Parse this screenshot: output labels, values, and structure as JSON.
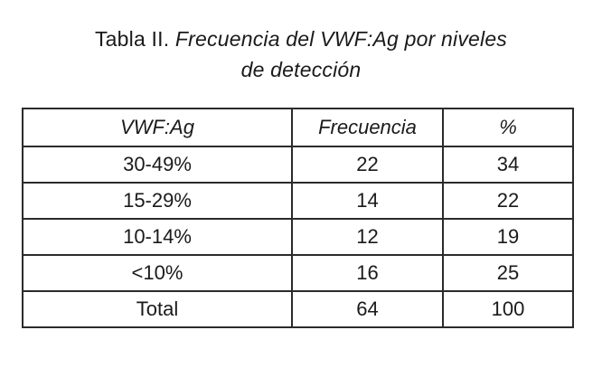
{
  "caption": {
    "lead": "Tabla II.",
    "title_line1": "Frecuencia del VWF:Ag por niveles",
    "title_line2": "de detección"
  },
  "table": {
    "headers": [
      "VWF:Ag",
      "Frecuencia",
      "%"
    ],
    "rows": [
      [
        "30-49%",
        "22",
        "34"
      ],
      [
        "15-29%",
        "14",
        "22"
      ],
      [
        "10-14%",
        "12",
        "19"
      ],
      [
        "<10%",
        "16",
        "25"
      ],
      [
        "Total",
        "64",
        "100"
      ]
    ]
  }
}
